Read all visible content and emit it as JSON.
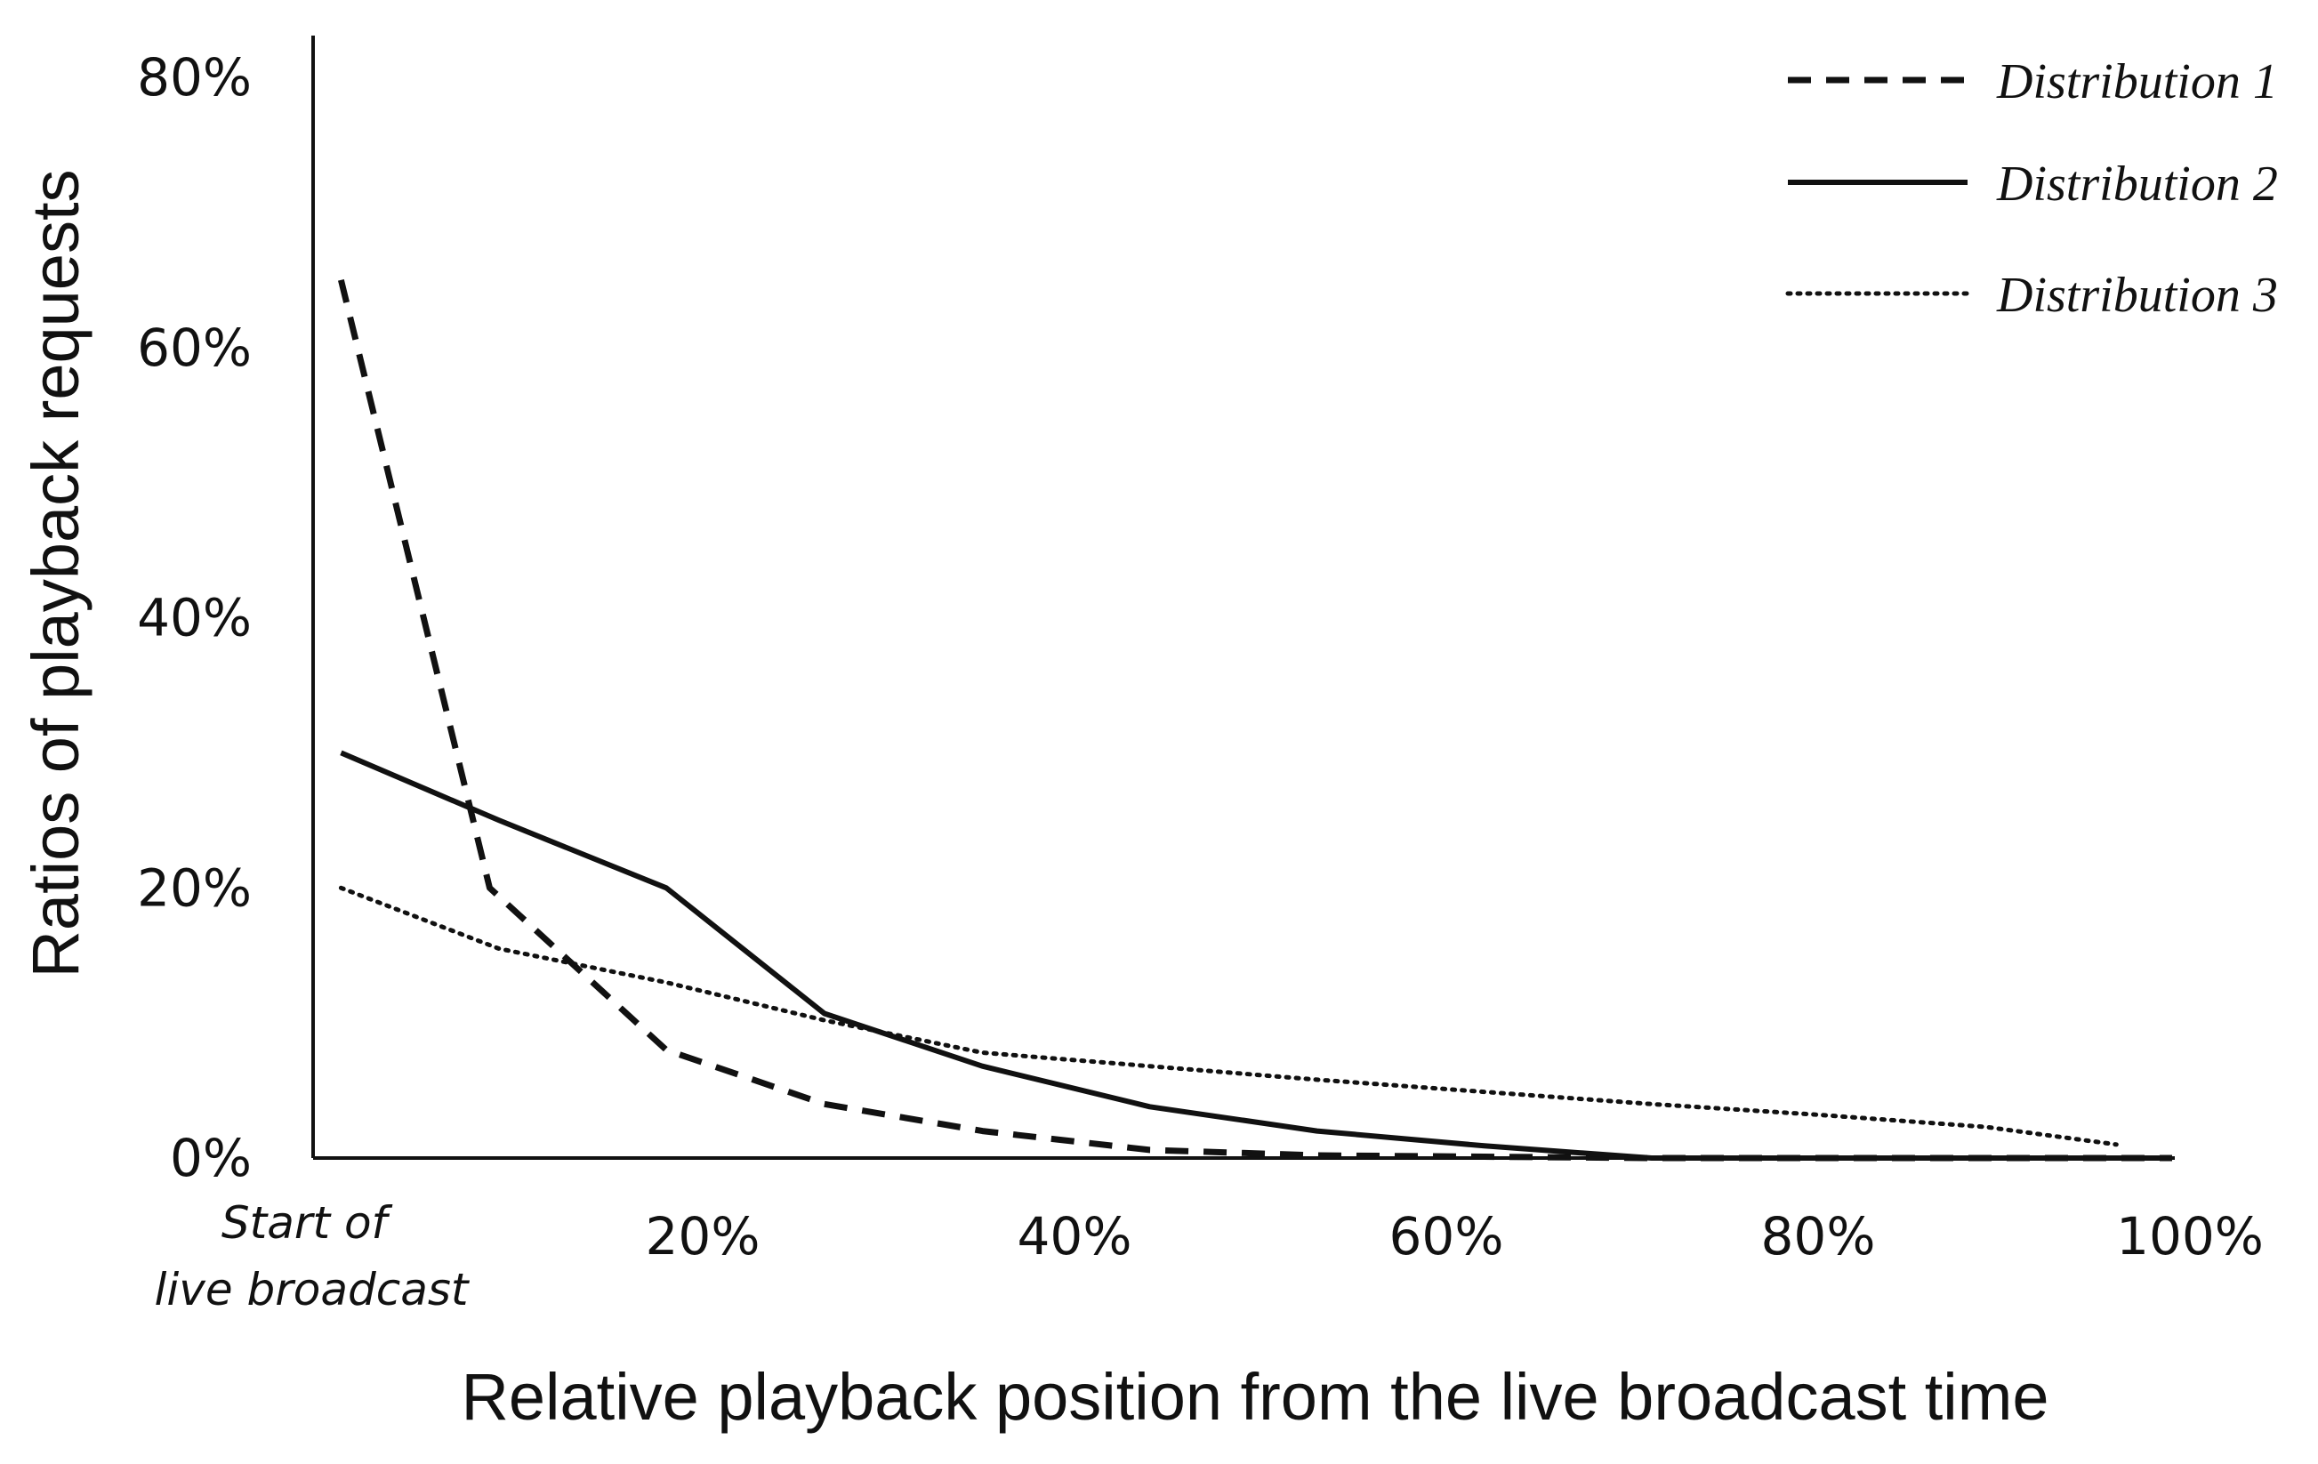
{
  "chart_data": {
    "type": "line",
    "title": "",
    "xlabel": "Relative playback position from the live broadcast time",
    "ylabel": "Ratios of playback requests",
    "x_origin_label": [
      "Start of",
      "live broadcast"
    ],
    "xlim": [
      0,
      100
    ],
    "ylim": [
      0,
      80
    ],
    "x_ticks": [
      {
        "value": 20,
        "label": "20%"
      },
      {
        "value": 40,
        "label": "40%"
      },
      {
        "value": 60,
        "label": "60%"
      },
      {
        "value": 80,
        "label": "80%"
      },
      {
        "value": 100,
        "label": "100%"
      }
    ],
    "y_ticks": [
      {
        "value": 0,
        "label": "0%"
      },
      {
        "value": 20,
        "label": "20%"
      },
      {
        "value": 40,
        "label": "40%"
      },
      {
        "value": 60,
        "label": "60%"
      },
      {
        "value": 80,
        "label": "80%"
      }
    ],
    "grid": false,
    "legend_position": "top-right",
    "series": [
      {
        "name": "Distribution 1",
        "style": "dashed",
        "color": "#111111",
        "points": [
          [
            1.5,
            65
          ],
          [
            9.5,
            20
          ],
          [
            19,
            8
          ],
          [
            27.5,
            4
          ],
          [
            36,
            2
          ],
          [
            45,
            0.6
          ],
          [
            54,
            0.2
          ],
          [
            63,
            0.1
          ],
          [
            72,
            0
          ],
          [
            100,
            0
          ]
        ]
      },
      {
        "name": "Distribution 2",
        "style": "solid",
        "color": "#111111",
        "points": [
          [
            1.5,
            30
          ],
          [
            10,
            25
          ],
          [
            19,
            20
          ],
          [
            27.5,
            10.7
          ],
          [
            36,
            6.8
          ],
          [
            45,
            3.8
          ],
          [
            54,
            2
          ],
          [
            63,
            0.9
          ],
          [
            72,
            0
          ],
          [
            100,
            0
          ]
        ]
      },
      {
        "name": "Distribution 3",
        "style": "dotted",
        "color": "#111111",
        "points": [
          [
            1.5,
            20
          ],
          [
            10,
            15.5
          ],
          [
            19,
            13
          ],
          [
            27.5,
            10.2
          ],
          [
            36,
            7.8
          ],
          [
            45,
            6.8
          ],
          [
            54,
            5.8
          ],
          [
            63,
            4.9
          ],
          [
            72,
            4
          ],
          [
            81,
            3.2
          ],
          [
            90,
            2.3
          ],
          [
            97,
            1
          ]
        ]
      }
    ]
  }
}
